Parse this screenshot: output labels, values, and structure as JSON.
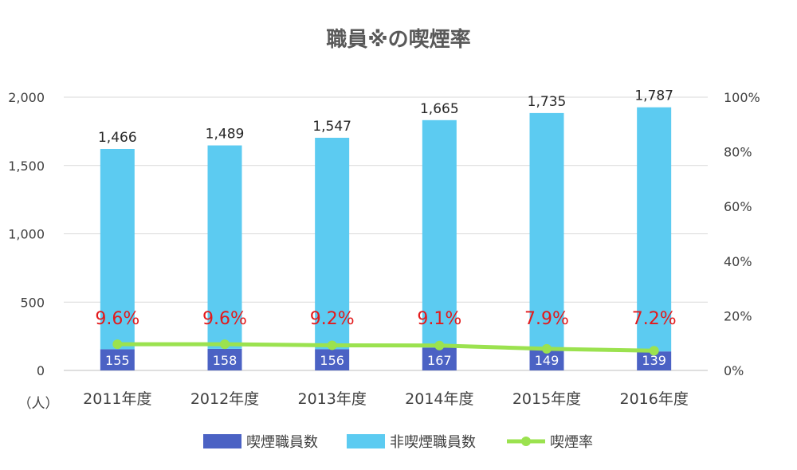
{
  "chart_data": {
    "type": "bar",
    "stacked": true,
    "title": "職員※の喫煙率",
    "unit_label": "（人）",
    "categories": [
      "2011年度",
      "2012年度",
      "2013年度",
      "2014年度",
      "2015年度",
      "2016年度"
    ],
    "series": [
      {
        "name": "喫煙職員数",
        "axis": "left",
        "values": [
          155,
          158,
          156,
          167,
          149,
          139
        ],
        "color": "#4b62c4"
      },
      {
        "name": "非喫煙職員数",
        "axis": "left",
        "values": [
          1466,
          1489,
          1547,
          1665,
          1735,
          1787
        ],
        "color": "#5ccbf1"
      },
      {
        "name": "喫煙率",
        "axis": "right",
        "type": "line",
        "values": [
          9.6,
          9.6,
          9.2,
          9.1,
          7.9,
          7.2
        ],
        "color": "#9be24f"
      }
    ],
    "rate_labels": [
      "9.6%",
      "9.6%",
      "9.2%",
      "9.1%",
      "7.9%",
      "7.2%"
    ],
    "rate_label_color": "#e31a1c",
    "yleft": {
      "min": 0,
      "max": 2000,
      "ticks": [
        "0",
        "500",
        "1,000",
        "1,500",
        "2,000"
      ],
      "tick_values": [
        0,
        500,
        1000,
        1500,
        2000
      ]
    },
    "yright": {
      "min": 0,
      "max": 100,
      "ticks": [
        "0%",
        "20%",
        "40%",
        "60%",
        "80%",
        "100%"
      ],
      "tick_values": [
        0,
        20,
        40,
        60,
        80,
        100
      ]
    },
    "value_labels_smokers": [
      "155",
      "158",
      "156",
      "167",
      "149",
      "139"
    ],
    "value_labels_nonsmokers": [
      "1,466",
      "1,489",
      "1,547",
      "1,665",
      "1,735",
      "1,787"
    ],
    "grid": true,
    "legend_position": "bottom"
  }
}
